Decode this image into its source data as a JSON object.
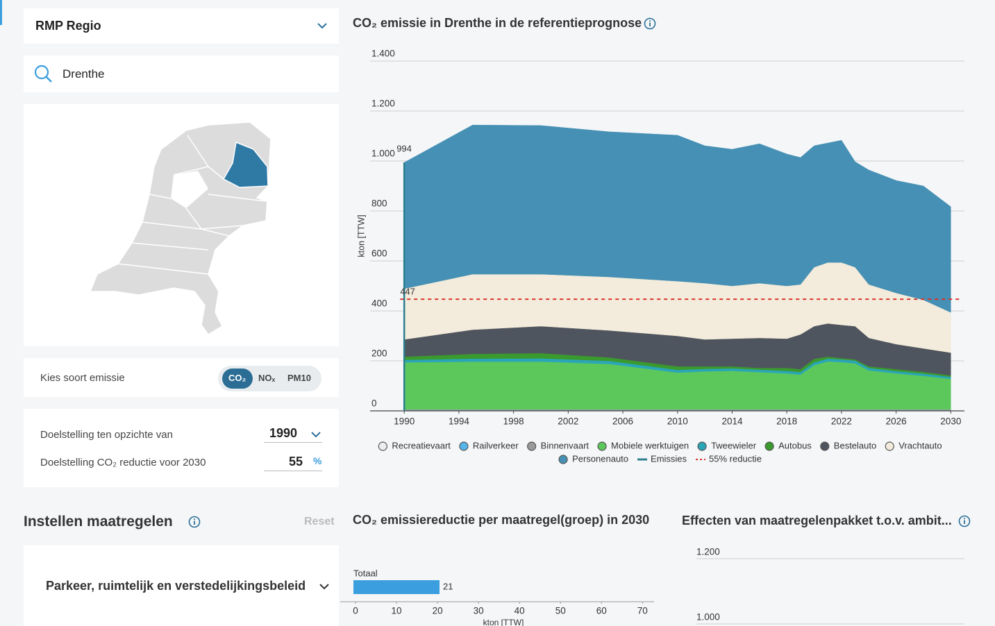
{
  "sidebar": {
    "region_select": "RMP Regio",
    "search": "Drenthe",
    "emission_label": "Kies soort emissie",
    "emission_options": [
      "CO₂",
      "NOₓ",
      "PM10"
    ],
    "target_label": "Doelstelling ten opzichte van",
    "target_year": 1990,
    "reduction_label": "Doelstelling CO₂ reductie voor 2030",
    "reduction_value": 55,
    "reduction_unit": "%",
    "measures_title": "Instellen maatregelen",
    "reset": "Reset",
    "measure_group": "Parkeer, ruimtelijk en verstedelijkingsbeleid"
  },
  "chart_data": [
    {
      "type": "area",
      "stacked": true,
      "title": "CO₂ emissie in Drenthe in de referentieprognose",
      "y_label": "kton [TTW]",
      "x": [
        1990,
        1995,
        2000,
        2005,
        2010,
        2012,
        2014,
        2016,
        2018,
        2019,
        2020,
        2021,
        2022,
        2023,
        2024,
        2026,
        2028,
        2030
      ],
      "xlim": [
        1987.5,
        2031
      ],
      "xticks": [
        1990,
        1994,
        1998,
        2002,
        2006,
        2010,
        2014,
        2018,
        2022,
        2026,
        2030
      ],
      "ylim": [
        0,
        1400
      ],
      "yticks": [
        0,
        200,
        400,
        600,
        800,
        {
          "value": 1000,
          "label": "1.000"
        },
        {
          "value": 1200,
          "label": "1.200"
        },
        {
          "value": 1400,
          "label": "1.400"
        }
      ],
      "grid": true,
      "series": [
        {
          "name": "Recreatievaart",
          "color": "#eeeeee",
          "values": [
            2,
            2,
            2,
            2,
            2,
            2,
            2,
            2,
            2,
            2,
            2,
            2,
            2,
            2,
            2,
            2,
            2,
            2
          ]
        },
        {
          "name": "Railverkeer",
          "color": "#56b4e9",
          "values": [
            1,
            1,
            1,
            1,
            1,
            1,
            1,
            1,
            1,
            1,
            1,
            1,
            1,
            1,
            1,
            1,
            1,
            1
          ]
        },
        {
          "name": "Binnenvaart",
          "color": "#9a9a9a",
          "values": [
            3,
            3,
            3,
            3,
            3,
            3,
            3,
            3,
            3,
            3,
            3,
            3,
            3,
            3,
            3,
            3,
            3,
            3
          ]
        },
        {
          "name": "Mobiele werktuigen",
          "color": "#5cc85c",
          "values": [
            188,
            191,
            191,
            182,
            147,
            152,
            154,
            149,
            144,
            139,
            177,
            192,
            189,
            184,
            156,
            144,
            134,
            122
          ]
        },
        {
          "name": "Tweewieler",
          "color": "#2aa6b8",
          "values": [
            10,
            12,
            13,
            12,
            11,
            10,
            10,
            10,
            10,
            10,
            11,
            11,
            11,
            11,
            10,
            9,
            9,
            8
          ]
        },
        {
          "name": "Autobus",
          "color": "#3a9a2e",
          "values": [
            13,
            19,
            21,
            14,
            14,
            10,
            8,
            7,
            12,
            12,
            14,
            8,
            5,
            5,
            6,
            8,
            7,
            6
          ]
        },
        {
          "name": "Bestelauto",
          "color": "#4f555e",
          "values": [
            69,
            97,
            108,
            108,
            122,
            108,
            111,
            120,
            117,
            139,
            131,
            133,
            133,
            133,
            114,
            100,
            94,
            91
          ]
        },
        {
          "name": "Vrachtauto",
          "color": "#f3ebdb",
          "values": [
            203,
            222,
            208,
            214,
            219,
            225,
            211,
            219,
            211,
            200,
            236,
            244,
            250,
            236,
            214,
            205,
            194,
            161
          ]
        },
        {
          "name": "Personenauto",
          "color": "#4590b4",
          "values": [
            505,
            597,
            595,
            581,
            584,
            550,
            547,
            558,
            528,
            508,
            486,
            478,
            489,
            422,
            458,
            450,
            456,
            423
          ]
        }
      ],
      "emissions": {
        "name": "Emissies",
        "color": "#2b7f8e",
        "x": 1990,
        "value": 994
      },
      "reduction_line": {
        "name": "55% reductie",
        "color": "#d9342b",
        "value": 447,
        "style": "dashed"
      }
    },
    {
      "type": "hbar",
      "title": "CO₂ emissiereductie per maatregel(groep) in 2030",
      "x_label": "kton [TTW]",
      "categories": [
        "Totaal"
      ],
      "values": [
        21
      ],
      "color": "#3b9ede",
      "xlim": [
        0,
        73
      ],
      "xticks": [
        0,
        10,
        20,
        30,
        40,
        50,
        60,
        70
      ]
    },
    {
      "type": "line",
      "title": "Effecten van maatregelenpakket t.o.v. ambit...",
      "ylim": [
        0,
        1200
      ],
      "yticks": [
        {
          "value": 1000,
          "label": "1.000"
        },
        {
          "value": 1200,
          "label": "1.200"
        }
      ],
      "grid": true
    }
  ]
}
